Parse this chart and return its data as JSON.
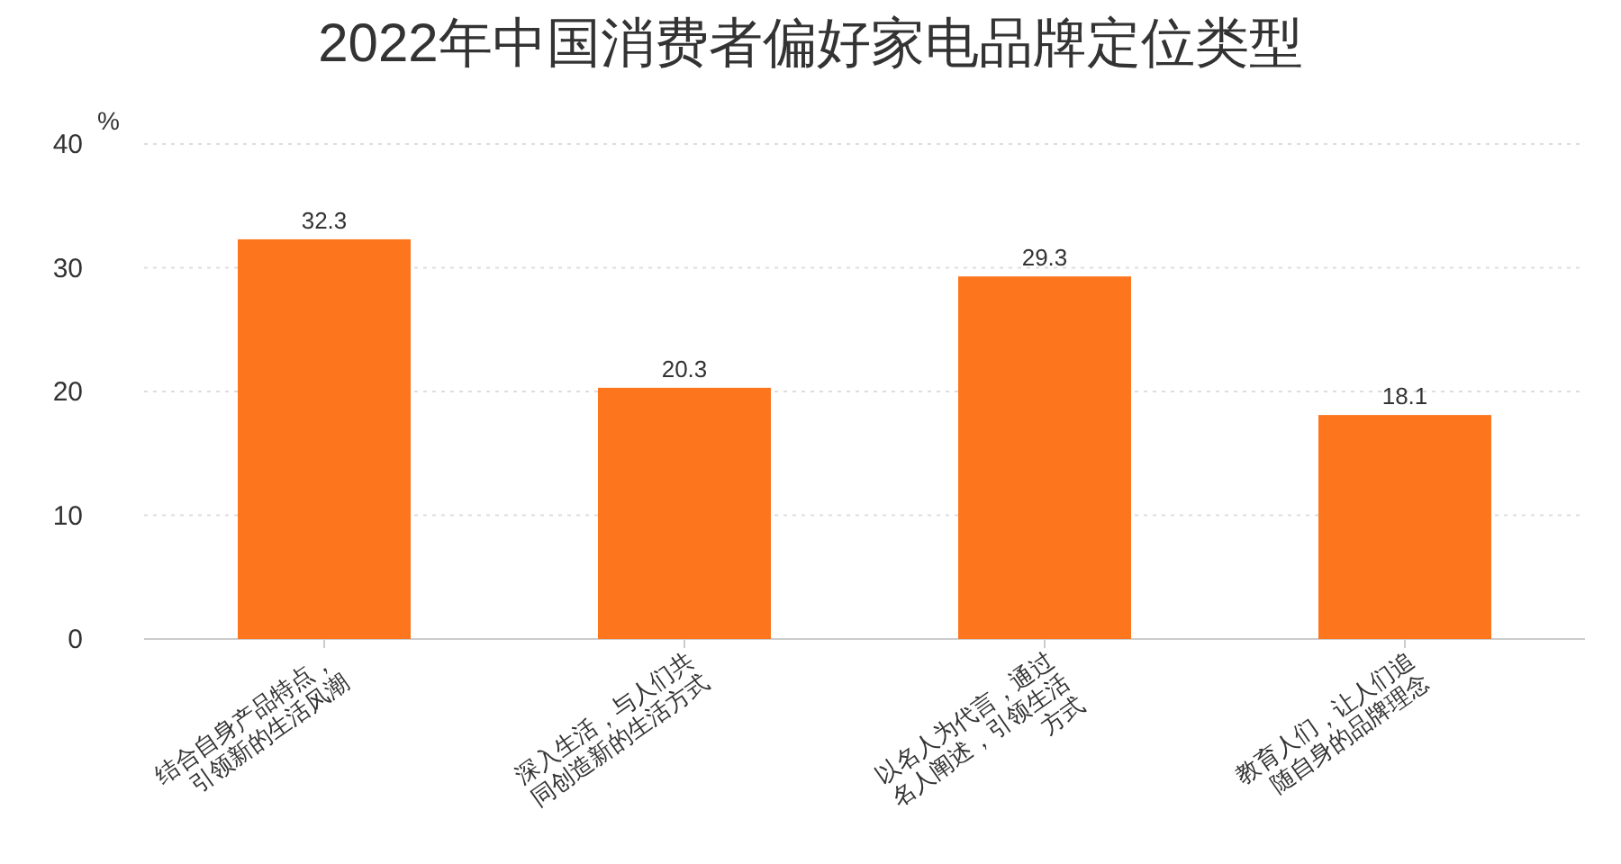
{
  "chart_data": {
    "type": "bar",
    "title": "2022年中国消费者偏好家电品牌定位类型",
    "ylabel": "%",
    "categories": [
      "结合自身产品特点，引领新的生活风潮",
      "深入生活，与人们共同创造新的生活方式",
      "以名人为代言，通过名人阐述，引领生活方式",
      "教育人们，让人们追随自身的品牌理念"
    ],
    "values": [
      32.3,
      20.3,
      29.3,
      18.1
    ],
    "color": "#fd761e",
    "ylim": [
      0,
      40
    ],
    "yticks": [
      0,
      10,
      20,
      30,
      40
    ],
    "grid": "y",
    "data_labels": true
  }
}
